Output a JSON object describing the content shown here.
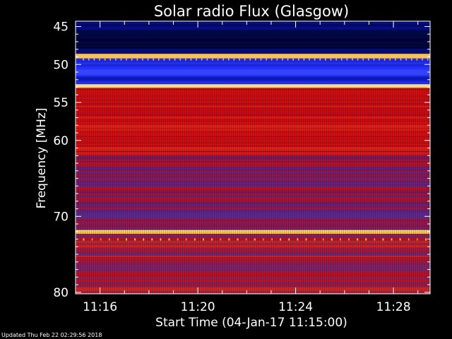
{
  "chart_data": {
    "type": "heatmap",
    "title": "Solar radio Flux (Glasgow)",
    "xlabel": "Start Time (04-Jan-17 11:15:00)",
    "ylabel": "Frequency [MHz]",
    "x_tick_labels": [
      "11:16",
      "11:20",
      "11:24",
      "11:28"
    ],
    "x_tick_minutes": [
      1,
      5,
      9,
      13
    ],
    "xlim_minutes": [
      0,
      14.5
    ],
    "y_tick_labels": [
      "45",
      "50",
      "55",
      "60",
      "70",
      "80"
    ],
    "y_tick_values": [
      45,
      50,
      55,
      60,
      70,
      80
    ],
    "ylim": [
      44.3,
      80.2
    ],
    "grid": false,
    "colors": {
      "background": "#000000",
      "low": "#000033",
      "mid_low": "#1a1aff",
      "mid": "#8c1a4d",
      "high": "#d91414",
      "peak": "#ffd060"
    },
    "bands": [
      {
        "from": 44.3,
        "to": 45.5,
        "level": "low"
      },
      {
        "from": 45.5,
        "to": 48.0,
        "level": "very-low"
      },
      {
        "from": 48.0,
        "to": 48.6,
        "level": "low"
      },
      {
        "from": 48.6,
        "to": 49.2,
        "level": "peak"
      },
      {
        "from": 49.2,
        "to": 50.3,
        "level": "mid-low"
      },
      {
        "from": 50.3,
        "to": 51.6,
        "level": "mid-low-bright"
      },
      {
        "from": 51.6,
        "to": 52.6,
        "level": "mid-low"
      },
      {
        "from": 52.6,
        "to": 53.1,
        "level": "peak"
      },
      {
        "from": 53.1,
        "to": 62.0,
        "level": "high"
      },
      {
        "from": 62.0,
        "to": 71.8,
        "level": "mixed"
      },
      {
        "from": 71.8,
        "to": 72.3,
        "level": "peak"
      },
      {
        "from": 72.3,
        "to": 80.2,
        "level": "mixed-high"
      }
    ]
  },
  "footer": {
    "updated": "Updated Thu Feb 22 02:29:56 2018"
  }
}
